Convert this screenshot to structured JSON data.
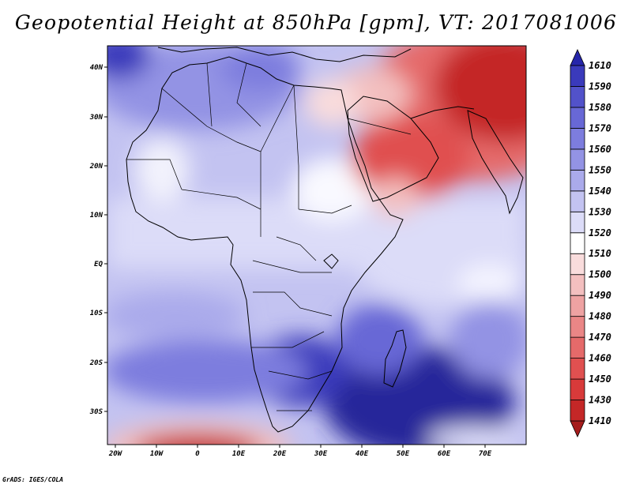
{
  "title": "Geopotential Height at 850hPa [gpm], VT: 2017081006",
  "credit": "GrADS: IGES/COLA",
  "map": {
    "lat_labels": [
      "40N",
      "30N",
      "20N",
      "10N",
      "EQ",
      "10S",
      "20S",
      "30S"
    ],
    "lon_labels": [
      "20W",
      "10W",
      "0",
      "10E",
      "20E",
      "30E",
      "40E",
      "50E",
      "60E",
      "70E"
    ],
    "lon_range": [
      -22,
      80
    ],
    "lat_range": [
      -37,
      45
    ]
  },
  "colorbar": {
    "levels": [
      "1410",
      "1430",
      "1450",
      "1460",
      "1470",
      "1480",
      "1490",
      "1500",
      "1510",
      "1520",
      "1530",
      "1540",
      "1550",
      "1560",
      "1570",
      "1580",
      "1590",
      "1610"
    ],
    "colors": [
      "#a51c1c",
      "#c42727",
      "#d83a3a",
      "#e05050",
      "#e56a6a",
      "#ea8686",
      "#eea2a2",
      "#f3bfbf",
      "#f9dcdc",
      "#ffffff",
      "#dcdcf8",
      "#c3c3f1",
      "#aaaaeb",
      "#9393e4",
      "#7d7dde",
      "#6868d6",
      "#5252ca",
      "#3a3abb",
      "#2626aa"
    ]
  }
}
